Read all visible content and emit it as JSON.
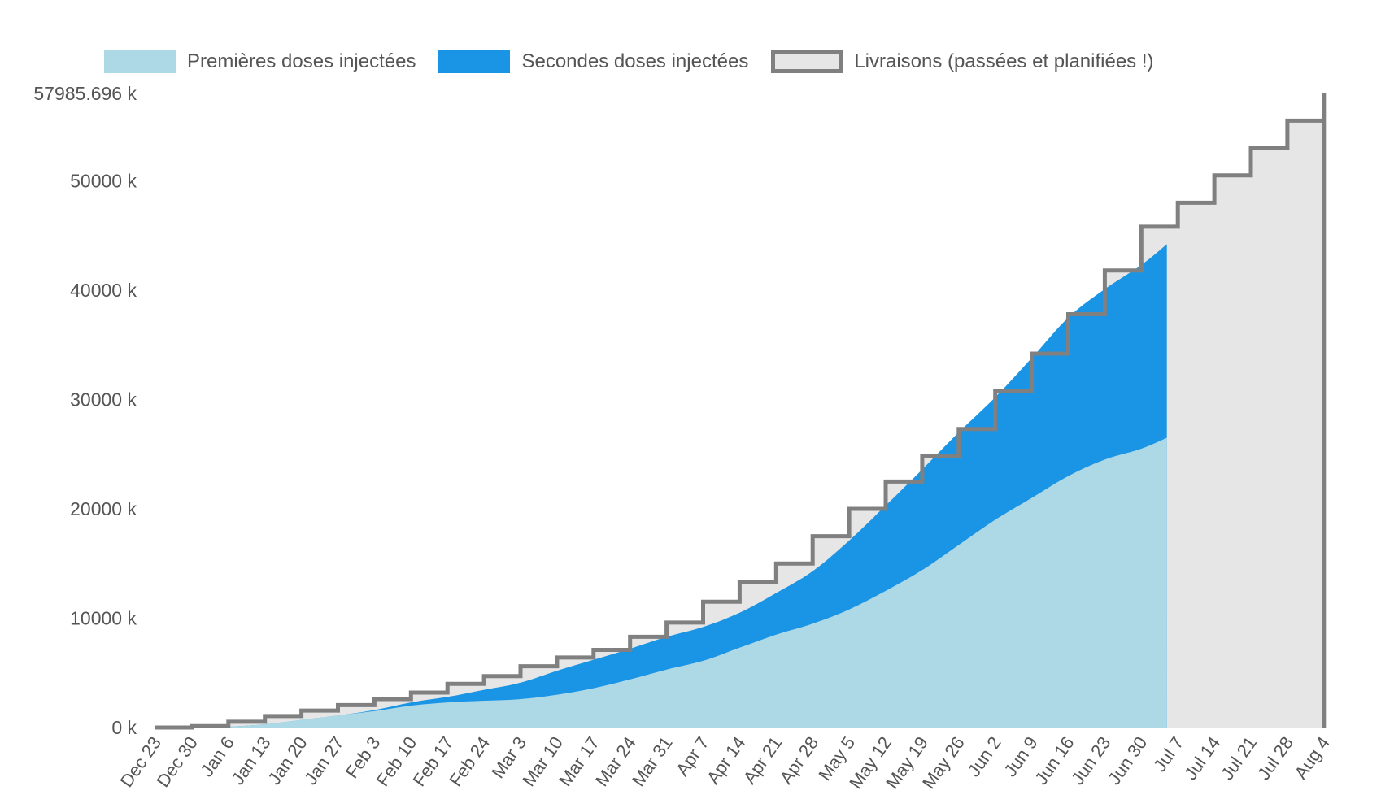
{
  "chart_data": {
    "type": "area",
    "title": "",
    "xlabel": "",
    "ylabel": "",
    "legend_position": "top",
    "categories": [
      "Dec 23",
      "Dec 30",
      "Jan 6",
      "Jan 13",
      "Jan 20",
      "Jan 27",
      "Feb 3",
      "Feb 10",
      "Feb 17",
      "Feb 24",
      "Mar 3",
      "Mar 10",
      "Mar 17",
      "Mar 24",
      "Mar 31",
      "Apr 7",
      "Apr 14",
      "Apr 21",
      "Apr 28",
      "May 5",
      "May 12",
      "May 19",
      "May 26",
      "Jun 2",
      "Jun 9",
      "Jun 16",
      "Jun 23",
      "Jun 30",
      "Jul 7",
      "Jul 14",
      "Jul 21",
      "Jul 28",
      "Aug 4"
    ],
    "y_ticks": [
      0,
      10000,
      20000,
      30000,
      40000,
      50000,
      57985.696
    ],
    "y_tick_labels": [
      "0 k",
      "10000 k",
      "20000 k",
      "30000 k",
      "40000 k",
      "50000 k",
      "57985.696 k"
    ],
    "ylim": [
      0,
      57985.696
    ],
    "series": [
      {
        "name": "Premières doses injectées",
        "color": "#add8e6",
        "x": [
          0,
          1,
          2,
          3,
          4,
          5,
          6,
          7,
          8,
          9,
          10,
          11,
          12,
          13,
          14,
          15,
          16,
          17,
          18,
          19,
          20,
          21,
          22,
          23,
          24,
          25,
          26,
          27,
          27.7
        ],
        "values": [
          0,
          20,
          80,
          300,
          700,
          1100,
          1500,
          2000,
          2300,
          2450,
          2600,
          3000,
          3600,
          4400,
          5300,
          6100,
          7300,
          8500,
          9500,
          10800,
          12500,
          14400,
          16700,
          19000,
          21000,
          23000,
          24500,
          25500,
          26500
        ]
      },
      {
        "name": "Secondes doses injectées",
        "color": "#1a94e5",
        "x": [
          0,
          1,
          2,
          3,
          4,
          5,
          6,
          7,
          8,
          9,
          10,
          11,
          12,
          13,
          14,
          15,
          16,
          17,
          18,
          19,
          20,
          21,
          22,
          23,
          24,
          25,
          26,
          27,
          27.7
        ],
        "values": [
          0,
          0,
          0,
          0,
          0,
          0,
          100,
          300,
          500,
          1000,
          1500,
          2200,
          2600,
          2800,
          3000,
          3100,
          3200,
          3800,
          4800,
          6300,
          7800,
          9200,
          10300,
          11200,
          12800,
          14500,
          15600,
          16800,
          17700
        ]
      },
      {
        "name": "Livraisons (passées et planifiées !)",
        "color": "#e6e6e6",
        "stroke": "#808080",
        "step": true,
        "values": [
          0,
          130,
          530,
          1050,
          1550,
          2050,
          2600,
          3200,
          4000,
          4700,
          5600,
          6400,
          7100,
          8300,
          9600,
          11500,
          13300,
          15000,
          17500,
          20000,
          22500,
          24800,
          27300,
          30800,
          34200,
          37800,
          41800,
          45800,
          48000,
          50500,
          53000,
          55500,
          57985.696
        ]
      }
    ]
  }
}
